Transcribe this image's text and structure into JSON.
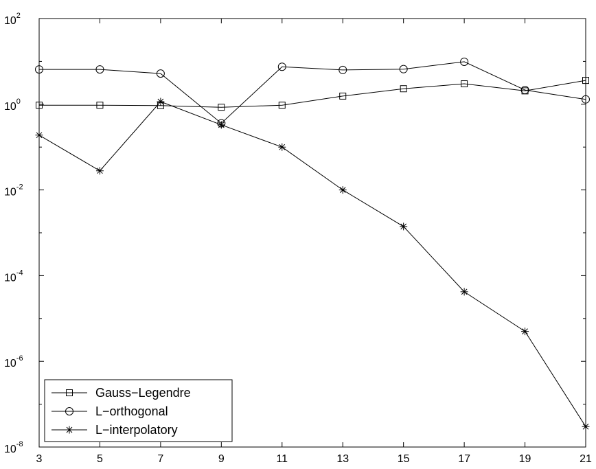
{
  "chart_data": {
    "type": "line",
    "title": "",
    "xlabel": "",
    "ylabel": "",
    "x": [
      3,
      5,
      7,
      9,
      11,
      13,
      15,
      17,
      19,
      21
    ],
    "xlim": [
      3,
      21
    ],
    "xticks": [
      "3",
      "5",
      "7",
      "9",
      "11",
      "13",
      "15",
      "17",
      "19",
      "21"
    ],
    "yscale": "log",
    "ylim": [
      1e-08,
      100
    ],
    "yticks": [
      {
        "base": "10",
        "exp": "2"
      },
      {
        "base": "10",
        "exp": "0"
      },
      {
        "base": "10",
        "exp": "-2"
      },
      {
        "base": "10",
        "exp": "-4"
      },
      {
        "base": "10",
        "exp": "-6"
      },
      {
        "base": "10",
        "exp": "-8"
      }
    ],
    "grid": false,
    "legend_position": "bottom-left",
    "series": [
      {
        "name": "Gauss−Legendre",
        "marker": "square",
        "values": [
          0.95,
          0.95,
          0.93,
          0.85,
          0.95,
          1.55,
          2.3,
          3.0,
          2.05,
          3.6
        ]
      },
      {
        "name": "L−orthogonal",
        "marker": "circle",
        "values": [
          6.5,
          6.5,
          5.2,
          0.36,
          7.5,
          6.3,
          6.6,
          9.8,
          2.15,
          1.3
        ]
      },
      {
        "name": "L−interpolatory",
        "marker": "star",
        "values": [
          0.19,
          0.028,
          1.15,
          0.33,
          0.1,
          0.01,
          0.0014,
          4.2e-05,
          5e-06,
          3e-08
        ]
      }
    ]
  }
}
